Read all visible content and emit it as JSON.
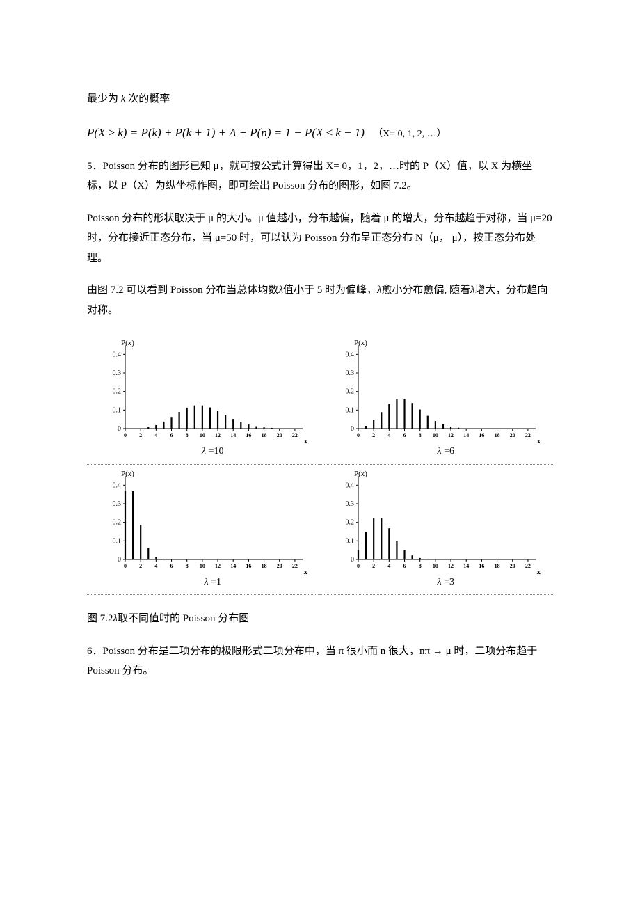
{
  "page": {
    "intro_line": "最少为 k 次的概率",
    "formula_text": "P(X ≥ k) = P(k) + P(k + 1) + Λ  + P(n) = 1 − P(X ≤ k − 1)",
    "formula_comment": "（X= 0, 1, 2, …）",
    "para5": "5．Poisson 分布的图形已知 μ，就可按公式计算得出 X= 0，1，2，…时的 P（X）值，以 X 为横坐标，以 P（X）为纵坐标作图，即可绘出 Poisson 分布的图形，如图 7.2。",
    "para5b": "Poisson 分布的形状取决于 μ 的大小。μ 值越小，分布越偏，随着 μ 的增大，分布越趋于对称，当 μ=20 时，分布接近正态分布，当 μ=50 时，可以认为 Poisson 分布呈正态分布 N（μ，  μ），按正态分布处理。",
    "para7a": "由图 7.2 可以看到 Poisson 分布当总体均数",
    "para7b": "值小于 5 时为偏峰，",
    "para7c": "愈小分布愈偏,  随着",
    "para7d": "增大，分布趋向对称。",
    "caption": "图 7.2",
    "caption_rest": "取不同值时的 Poisson 分布图",
    "para6": "6．Poisson 分布是二项分布的极限形式二项分布中，当 π 很小而 n 很大，nπ → μ 时，二项分布趋于 Poisson 分布。"
  },
  "charts": {
    "y_label": "P(x)",
    "x_label": "x",
    "y_ticks": [
      0,
      0.1,
      0.2,
      0.3,
      0.4
    ],
    "x_ticks": [
      0,
      2,
      4,
      6,
      8,
      10,
      12,
      14,
      16,
      18,
      20,
      22
    ],
    "y_max": 0.45,
    "bar_color": "#000000",
    "axis_color": "#000000",
    "tick_fontsize": 8,
    "label_fontsize": 11,
    "lambda_label_prefix": "λ =",
    "panels": [
      {
        "lambda": 10,
        "label": "10",
        "values": [
          0.0,
          0.0,
          0.002,
          0.008,
          0.019,
          0.038,
          0.063,
          0.09,
          0.113,
          0.125,
          0.125,
          0.114,
          0.095,
          0.073,
          0.052,
          0.035,
          0.022,
          0.013,
          0.007,
          0.004,
          0.002,
          0.001,
          0.0
        ]
      },
      {
        "lambda": 6,
        "label": "6",
        "values": [
          0.002,
          0.015,
          0.045,
          0.089,
          0.134,
          0.161,
          0.161,
          0.138,
          0.103,
          0.069,
          0.041,
          0.023,
          0.011,
          0.005,
          0.002,
          0.001,
          0.0,
          0.0,
          0.0,
          0.0,
          0.0,
          0.0,
          0.0
        ]
      },
      {
        "lambda": 1,
        "label": "1",
        "values": [
          0.368,
          0.368,
          0.184,
          0.061,
          0.015,
          0.003,
          0.001,
          0.0,
          0.0,
          0.0,
          0.0,
          0.0,
          0.0,
          0.0,
          0.0,
          0.0,
          0.0,
          0.0,
          0.0,
          0.0,
          0.0,
          0.0,
          0.0
        ]
      },
      {
        "lambda": 3,
        "label": "3",
        "values": [
          0.05,
          0.149,
          0.224,
          0.224,
          0.168,
          0.101,
          0.05,
          0.022,
          0.008,
          0.003,
          0.001,
          0.0,
          0.0,
          0.0,
          0.0,
          0.0,
          0.0,
          0.0,
          0.0,
          0.0,
          0.0,
          0.0,
          0.0
        ]
      }
    ]
  }
}
